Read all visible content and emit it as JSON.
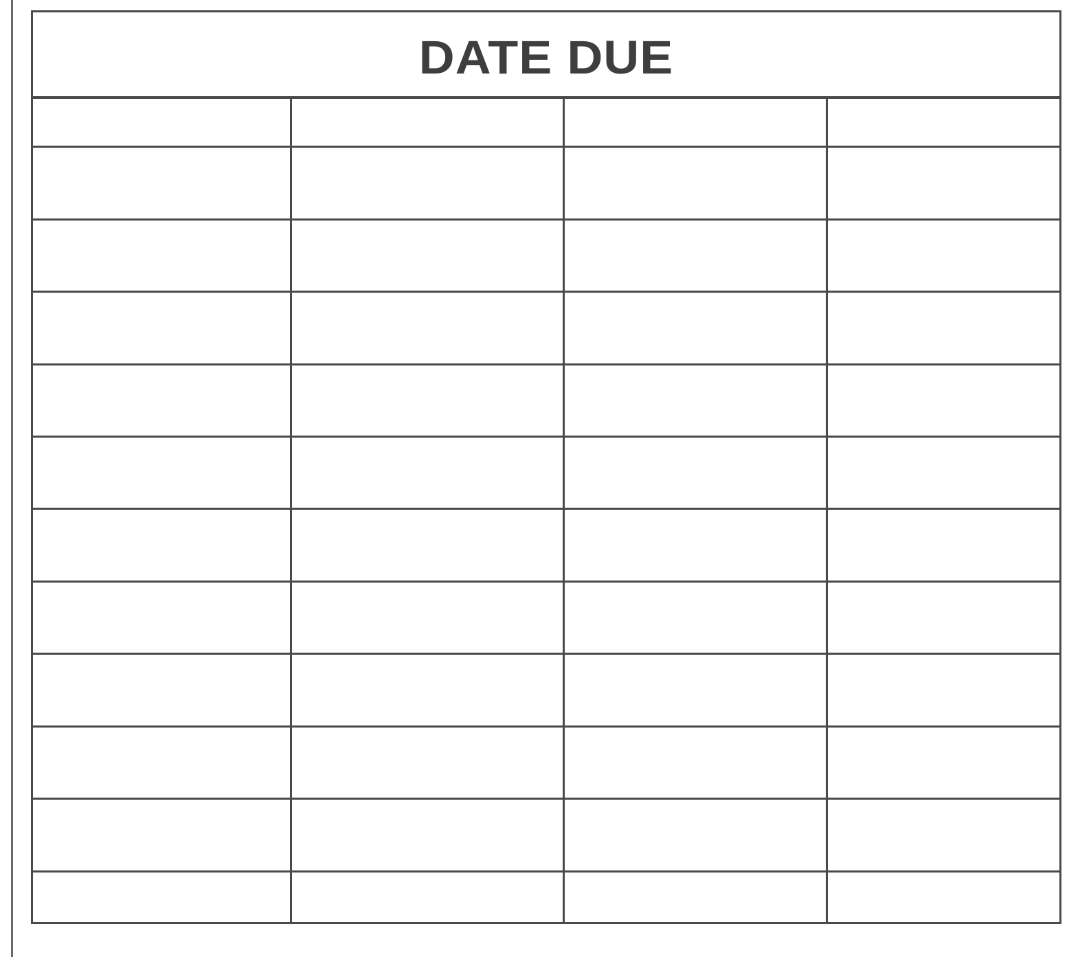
{
  "card": {
    "title": "DATE DUE",
    "rows": [
      [
        "",
        "",
        "",
        ""
      ],
      [
        "",
        "",
        "",
        ""
      ],
      [
        "",
        "",
        "",
        ""
      ],
      [
        "",
        "",
        "",
        ""
      ],
      [
        "",
        "",
        "",
        ""
      ],
      [
        "",
        "",
        "",
        ""
      ],
      [
        "",
        "",
        "",
        ""
      ],
      [
        "",
        "",
        "",
        ""
      ],
      [
        "",
        "",
        "",
        ""
      ],
      [
        "",
        "",
        "",
        ""
      ],
      [
        "",
        "",
        "",
        ""
      ],
      [
        "",
        "",
        "",
        ""
      ]
    ]
  }
}
